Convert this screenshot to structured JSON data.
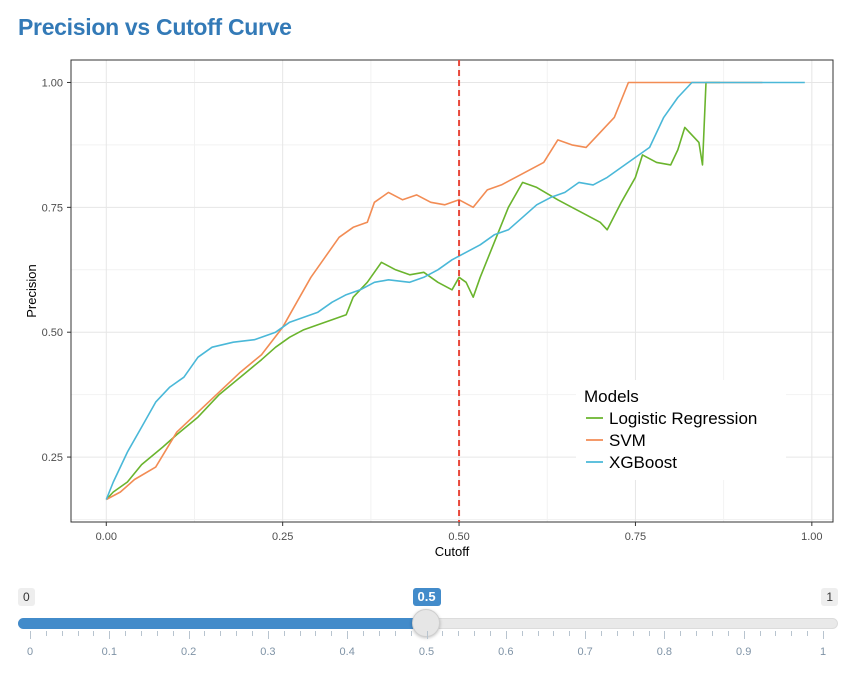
{
  "page": {
    "title": "Precision vs Cutoff Curve"
  },
  "chart_data": {
    "type": "line",
    "title": "Precision vs Cutoff Curve",
    "xlabel": "Cutoff",
    "ylabel": "Precision",
    "xlim": [
      -0.05,
      1.03
    ],
    "ylim": [
      0.12,
      1.045
    ],
    "x_ticks": [
      0,
      0.25,
      0.5,
      0.75,
      1
    ],
    "x_tick_labels": [
      "0.00",
      "0.25",
      "0.50",
      "0.75",
      "1.00"
    ],
    "y_ticks": [
      0.25,
      0.5,
      0.75,
      1
    ],
    "y_tick_labels": [
      "0.25",
      "0.50",
      "0.75",
      "1.00"
    ],
    "grid": true,
    "legend_title": "Models",
    "legend_position": "bottom-right (inside)",
    "cutoff_line": {
      "x": 0.5,
      "color": "#e8483b",
      "style": "dashed"
    },
    "series": [
      {
        "name": "Logistic Regression",
        "color": "#6ab42d",
        "points": [
          [
            0.0,
            0.165
          ],
          [
            0.01,
            0.18
          ],
          [
            0.03,
            0.2
          ],
          [
            0.05,
            0.235
          ],
          [
            0.08,
            0.27
          ],
          [
            0.1,
            0.295
          ],
          [
            0.13,
            0.33
          ],
          [
            0.16,
            0.375
          ],
          [
            0.19,
            0.41
          ],
          [
            0.22,
            0.445
          ],
          [
            0.24,
            0.47
          ],
          [
            0.26,
            0.49
          ],
          [
            0.28,
            0.505
          ],
          [
            0.3,
            0.515
          ],
          [
            0.32,
            0.525
          ],
          [
            0.34,
            0.535
          ],
          [
            0.35,
            0.57
          ],
          [
            0.37,
            0.6
          ],
          [
            0.39,
            0.64
          ],
          [
            0.41,
            0.625
          ],
          [
            0.43,
            0.615
          ],
          [
            0.45,
            0.62
          ],
          [
            0.47,
            0.6
          ],
          [
            0.49,
            0.585
          ],
          [
            0.5,
            0.61
          ],
          [
            0.51,
            0.6
          ],
          [
            0.52,
            0.57
          ],
          [
            0.53,
            0.61
          ],
          [
            0.55,
            0.68
          ],
          [
            0.57,
            0.75
          ],
          [
            0.59,
            0.8
          ],
          [
            0.61,
            0.79
          ],
          [
            0.64,
            0.765
          ],
          [
            0.66,
            0.75
          ],
          [
            0.68,
            0.735
          ],
          [
            0.7,
            0.72
          ],
          [
            0.71,
            0.705
          ],
          [
            0.73,
            0.76
          ],
          [
            0.75,
            0.81
          ],
          [
            0.76,
            0.855
          ],
          [
            0.78,
            0.84
          ],
          [
            0.8,
            0.835
          ],
          [
            0.81,
            0.865
          ],
          [
            0.82,
            0.91
          ],
          [
            0.84,
            0.88
          ],
          [
            0.845,
            0.835
          ],
          [
            0.85,
            1.0
          ],
          [
            0.87,
            1.0
          ]
        ]
      },
      {
        "name": "SVM",
        "color": "#f28c54",
        "points": [
          [
            0.0,
            0.165
          ],
          [
            0.02,
            0.18
          ],
          [
            0.04,
            0.205
          ],
          [
            0.07,
            0.23
          ],
          [
            0.1,
            0.3
          ],
          [
            0.13,
            0.34
          ],
          [
            0.16,
            0.38
          ],
          [
            0.19,
            0.42
          ],
          [
            0.22,
            0.455
          ],
          [
            0.25,
            0.51
          ],
          [
            0.27,
            0.56
          ],
          [
            0.29,
            0.61
          ],
          [
            0.31,
            0.65
          ],
          [
            0.33,
            0.69
          ],
          [
            0.35,
            0.71
          ],
          [
            0.37,
            0.72
          ],
          [
            0.38,
            0.76
          ],
          [
            0.4,
            0.78
          ],
          [
            0.42,
            0.765
          ],
          [
            0.44,
            0.775
          ],
          [
            0.46,
            0.76
          ],
          [
            0.48,
            0.755
          ],
          [
            0.5,
            0.765
          ],
          [
            0.52,
            0.75
          ],
          [
            0.54,
            0.785
          ],
          [
            0.56,
            0.795
          ],
          [
            0.58,
            0.81
          ],
          [
            0.6,
            0.825
          ],
          [
            0.62,
            0.84
          ],
          [
            0.64,
            0.885
          ],
          [
            0.66,
            0.875
          ],
          [
            0.68,
            0.87
          ],
          [
            0.7,
            0.9
          ],
          [
            0.72,
            0.93
          ],
          [
            0.74,
            1.0
          ],
          [
            0.8,
            1.0
          ],
          [
            0.93,
            1.0
          ]
        ]
      },
      {
        "name": "XGBoost",
        "color": "#4ab8d8",
        "points": [
          [
            0.0,
            0.165
          ],
          [
            0.01,
            0.2
          ],
          [
            0.03,
            0.26
          ],
          [
            0.05,
            0.31
          ],
          [
            0.07,
            0.36
          ],
          [
            0.09,
            0.39
          ],
          [
            0.11,
            0.41
          ],
          [
            0.13,
            0.45
          ],
          [
            0.15,
            0.47
          ],
          [
            0.18,
            0.48
          ],
          [
            0.21,
            0.485
          ],
          [
            0.24,
            0.5
          ],
          [
            0.26,
            0.52
          ],
          [
            0.28,
            0.53
          ],
          [
            0.3,
            0.54
          ],
          [
            0.32,
            0.56
          ],
          [
            0.34,
            0.575
          ],
          [
            0.36,
            0.585
          ],
          [
            0.38,
            0.6
          ],
          [
            0.4,
            0.605
          ],
          [
            0.43,
            0.6
          ],
          [
            0.45,
            0.61
          ],
          [
            0.47,
            0.625
          ],
          [
            0.49,
            0.645
          ],
          [
            0.51,
            0.66
          ],
          [
            0.53,
            0.675
          ],
          [
            0.55,
            0.695
          ],
          [
            0.57,
            0.705
          ],
          [
            0.59,
            0.73
          ],
          [
            0.61,
            0.755
          ],
          [
            0.63,
            0.77
          ],
          [
            0.65,
            0.78
          ],
          [
            0.67,
            0.8
          ],
          [
            0.69,
            0.795
          ],
          [
            0.71,
            0.81
          ],
          [
            0.73,
            0.83
          ],
          [
            0.75,
            0.85
          ],
          [
            0.77,
            0.87
          ],
          [
            0.79,
            0.93
          ],
          [
            0.81,
            0.97
          ],
          [
            0.83,
            1.0
          ],
          [
            0.9,
            1.0
          ],
          [
            0.99,
            1.0
          ]
        ]
      }
    ]
  },
  "slider": {
    "min": 0,
    "max": 1,
    "value": 0.5,
    "min_label": "0",
    "max_label": "1",
    "value_label": "0.5",
    "major_ticks": [
      0,
      0.1,
      0.2,
      0.3,
      0.4,
      0.5,
      0.6,
      0.7,
      0.8,
      0.9,
      1
    ],
    "tick_labels": [
      "0",
      "0.1",
      "0.2",
      "0.3",
      "0.4",
      "0.5",
      "0.6",
      "0.7",
      "0.8",
      "0.9",
      "1"
    ],
    "fill_color": "#428bca"
  }
}
